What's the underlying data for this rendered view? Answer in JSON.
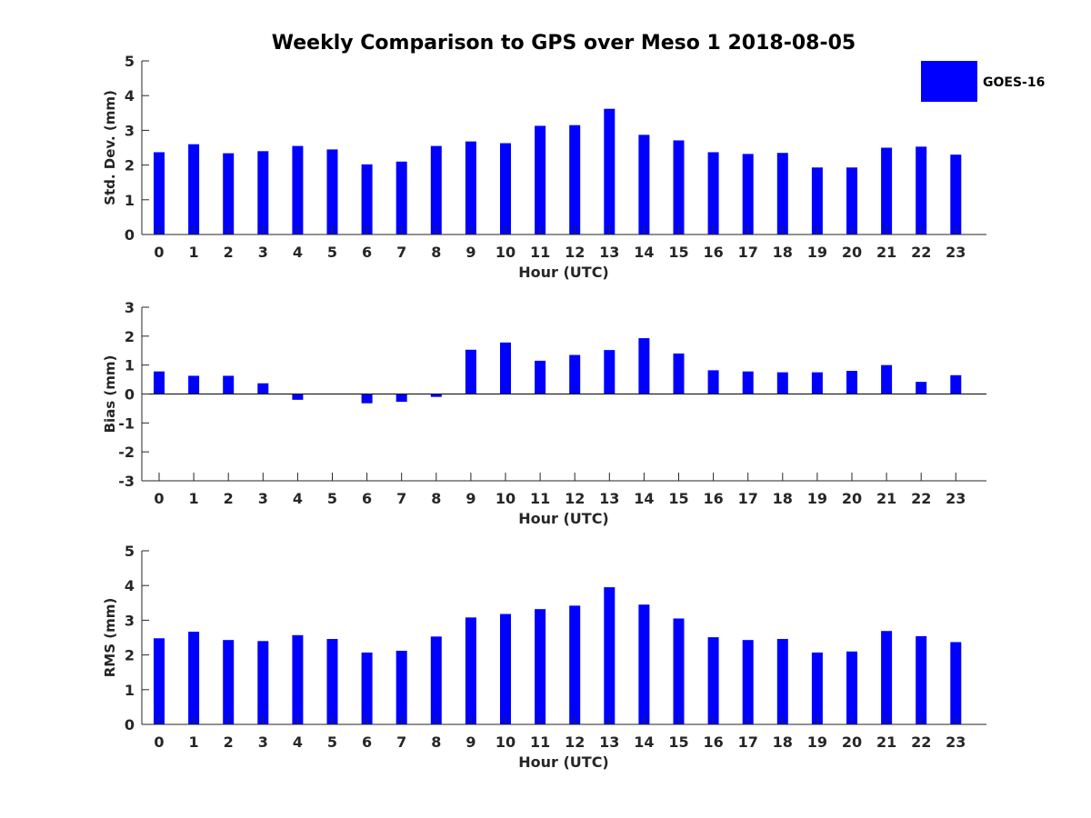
{
  "chart_data": {
    "title": "Weekly Comparison to GPS over Meso 1 2018-08-05",
    "legend": {
      "label": "GOES-16",
      "color": "#0000ff",
      "placement": "top-right"
    },
    "hours": [
      "0",
      "1",
      "2",
      "3",
      "4",
      "5",
      "6",
      "7",
      "8",
      "9",
      "10",
      "11",
      "12",
      "13",
      "14",
      "15",
      "16",
      "17",
      "18",
      "19",
      "20",
      "21",
      "22",
      "23"
    ],
    "panels": [
      {
        "id": "std",
        "type": "bar",
        "ylabel": "Std. Dev. (mm)",
        "xlabel": "Hour (UTC)",
        "ylim": [
          0,
          5
        ],
        "yticks": [
          "0",
          "1",
          "2",
          "3",
          "4",
          "5"
        ],
        "values": [
          2.37,
          2.6,
          2.34,
          2.4,
          2.55,
          2.45,
          2.02,
          2.1,
          2.55,
          2.68,
          2.63,
          3.13,
          3.15,
          3.62,
          2.87,
          2.71,
          2.37,
          2.32,
          2.35,
          1.93,
          1.93,
          2.5,
          2.53,
          2.3
        ]
      },
      {
        "id": "bias",
        "type": "bar",
        "ylabel": "Bias (mm)",
        "xlabel": "Hour (UTC)",
        "ylim": [
          -3,
          3
        ],
        "yticks": [
          "-3",
          "-2",
          "-1",
          "0",
          "1",
          "2",
          "3"
        ],
        "values": [
          0.78,
          0.63,
          0.63,
          0.37,
          -0.2,
          0.0,
          -0.32,
          -0.27,
          -0.1,
          1.53,
          1.78,
          1.15,
          1.35,
          1.52,
          1.93,
          1.4,
          0.82,
          0.78,
          0.75,
          0.75,
          0.8,
          1.0,
          0.42,
          0.65
        ]
      },
      {
        "id": "rms",
        "type": "bar",
        "ylabel": "RMS (mm)",
        "xlabel": "Hour (UTC)",
        "ylim": [
          0,
          5
        ],
        "yticks": [
          "0",
          "1",
          "2",
          "3",
          "4",
          "5"
        ],
        "values": [
          2.48,
          2.67,
          2.43,
          2.4,
          2.57,
          2.46,
          2.07,
          2.12,
          2.53,
          3.08,
          3.18,
          3.32,
          3.42,
          3.95,
          3.45,
          3.05,
          2.51,
          2.43,
          2.46,
          2.07,
          2.1,
          2.69,
          2.54,
          2.37
        ]
      }
    ]
  }
}
